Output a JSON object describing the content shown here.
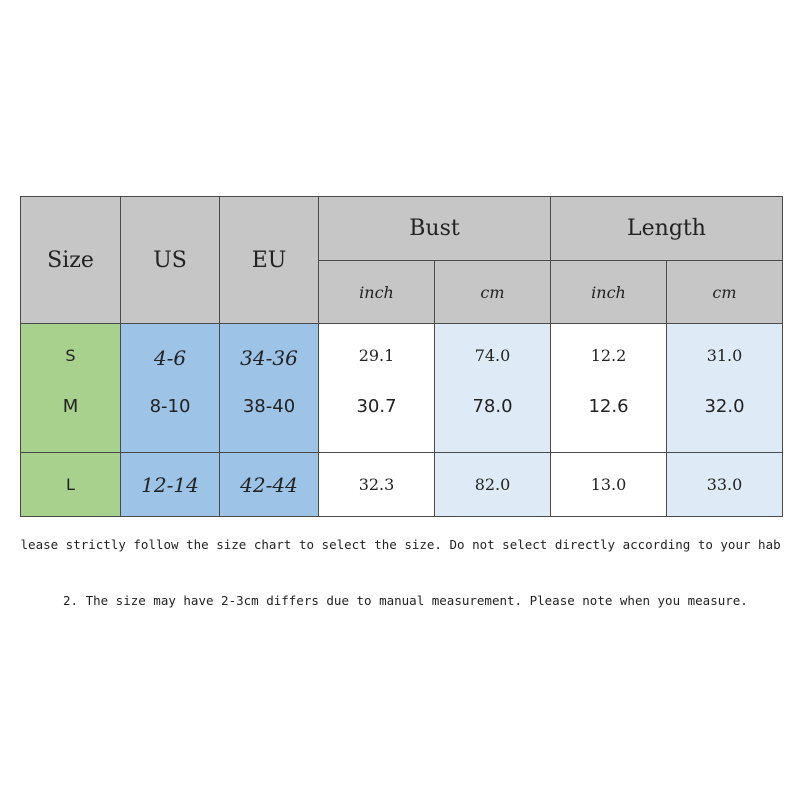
{
  "table": {
    "headers": {
      "size": "Size",
      "us": "US",
      "eu": "EU",
      "bust": "Bust",
      "length": "Length",
      "bust_inch": "inch",
      "bust_cm": "cm",
      "length_inch": "inch",
      "length_cm": "cm"
    },
    "rows": [
      {
        "size": "S",
        "us": "4-6",
        "eu": "34-36",
        "bust_inch": "29.1",
        "bust_cm": "74.0",
        "length_inch": "12.2",
        "length_cm": "31.0"
      },
      {
        "size": "M",
        "us": "8-10",
        "eu": "38-40",
        "bust_inch": "30.7",
        "bust_cm": "78.0",
        "length_inch": "12.6",
        "length_cm": "32.0"
      },
      {
        "size": "L",
        "us": "12-14",
        "eu": "42-44",
        "bust_inch": "32.3",
        "bust_cm": "82.0",
        "length_inch": "13.0",
        "length_cm": "33.0"
      }
    ]
  },
  "notes": {
    "note1": "Please strictly follow the size chart to select the size. Do not select directly according to your habits.",
    "note2": "2. The size may have 2-3cm differs due to manual measurement. Please note when you measure."
  },
  "colors": {
    "header_gray": "#c6c6c6",
    "size_green": "#a9d18e",
    "us_eu_blue": "#9dc3e6",
    "cm_light_blue": "#deebf7"
  }
}
